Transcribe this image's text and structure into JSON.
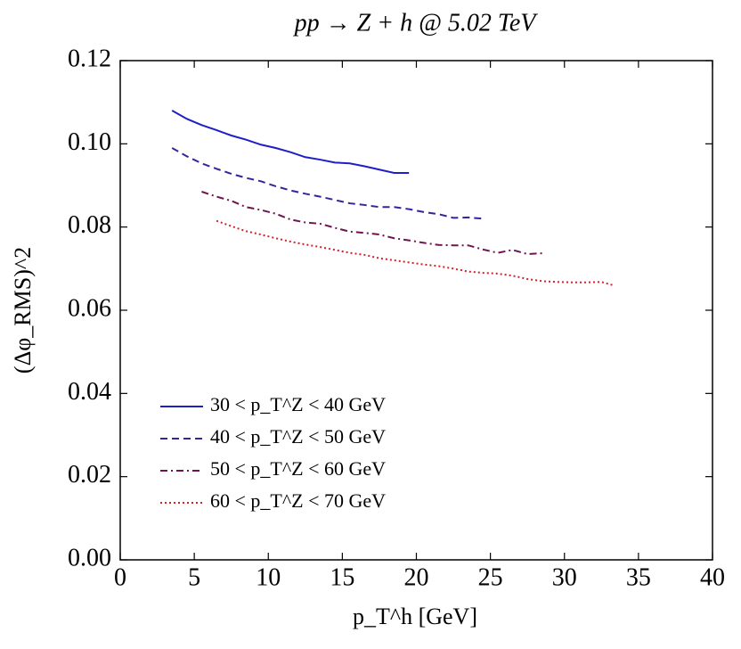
{
  "chart_data": {
    "type": "line",
    "title": "pp → Z + h @ 5.02 TeV",
    "x_label": "p_T^h [GeV]",
    "y_label": "(Δφ_RMS)^2",
    "xlim": [
      0,
      40
    ],
    "xticks": [
      0,
      5,
      10,
      15,
      20,
      25,
      30,
      35,
      40
    ],
    "ylim": [
      0,
      0.12
    ],
    "yticks": [
      {
        "value": 0,
        "label": "0.00"
      },
      0.02,
      0.04,
      0.06,
      0.08,
      {
        "value": 0.1,
        "label": "0.10"
      },
      0.12
    ],
    "legend": "lower left",
    "series": [
      {
        "name": "30 < p_T^Z < 40 GeV",
        "color": "#1f1fc8",
        "style": "solid",
        "x": [
          3.5,
          4.5,
          5.5,
          6.5,
          7.5,
          8.5,
          9.5,
          10.5,
          11.5,
          12.5,
          13.5,
          14.5,
          15.5,
          16.5,
          17.5,
          18.5,
          19.5
        ],
        "values": [
          0.108,
          0.106,
          0.1045,
          0.1033,
          0.102,
          0.101,
          0.0998,
          0.099,
          0.098,
          0.0968,
          0.0962,
          0.0955,
          0.0953,
          0.0946,
          0.0938,
          0.093,
          0.093
        ]
      },
      {
        "name": "40 < p_T^Z < 50 GeV",
        "color": "#3a229a",
        "style": "dashed",
        "x": [
          3.5,
          4.5,
          5.5,
          6.5,
          7.5,
          8.5,
          9.5,
          10.5,
          11.5,
          12.5,
          13.5,
          14.5,
          15.5,
          16.5,
          17.5,
          18.5,
          19.5,
          20.5,
          21.5,
          22.5,
          23.5,
          24.5
        ],
        "values": [
          0.099,
          0.097,
          0.0953,
          0.094,
          0.0928,
          0.0918,
          0.091,
          0.0898,
          0.0888,
          0.088,
          0.0873,
          0.0865,
          0.0857,
          0.0853,
          0.0848,
          0.0848,
          0.0843,
          0.0836,
          0.0831,
          0.0822,
          0.0823,
          0.082
        ]
      },
      {
        "name": "50 < p_T^Z < 60 GeV",
        "color": "#6e1450",
        "style": "dashdot",
        "x": [
          5.5,
          6.5,
          7.5,
          8.5,
          9.5,
          10.5,
          11.5,
          12.5,
          13.5,
          14.5,
          15.5,
          16.5,
          17.5,
          18.5,
          19.5,
          20.5,
          21.5,
          22.5,
          23.5,
          24.5,
          25.5,
          26.5,
          27.5,
          28.5
        ],
        "values": [
          0.0885,
          0.0873,
          0.0863,
          0.0848,
          0.0841,
          0.0832,
          0.0818,
          0.0811,
          0.0808,
          0.0798,
          0.0789,
          0.0786,
          0.0782,
          0.0773,
          0.0768,
          0.0762,
          0.0757,
          0.0756,
          0.0756,
          0.0746,
          0.0738,
          0.0745,
          0.0735,
          0.0737
        ]
      },
      {
        "name": "60 < p_T^Z < 70 GeV",
        "color": "#d4202c",
        "style": "dotted",
        "x": [
          6.5,
          7.5,
          8.5,
          9.5,
          10.5,
          11.5,
          12.5,
          13.5,
          14.5,
          15.5,
          16.5,
          17.5,
          18.5,
          19.5,
          20.5,
          21.5,
          22.5,
          23.5,
          24.5,
          25.5,
          26.5,
          27.5,
          28.5,
          29.5,
          30.5,
          31.5,
          32.5,
          33.3
        ],
        "values": [
          0.0815,
          0.0802,
          0.079,
          0.0782,
          0.0773,
          0.0765,
          0.0758,
          0.0752,
          0.0745,
          0.0738,
          0.0733,
          0.0725,
          0.072,
          0.0715,
          0.071,
          0.0706,
          0.07,
          0.0693,
          0.069,
          0.0688,
          0.0683,
          0.0675,
          0.067,
          0.0668,
          0.0667,
          0.0667,
          0.0668,
          0.066
        ]
      }
    ]
  }
}
